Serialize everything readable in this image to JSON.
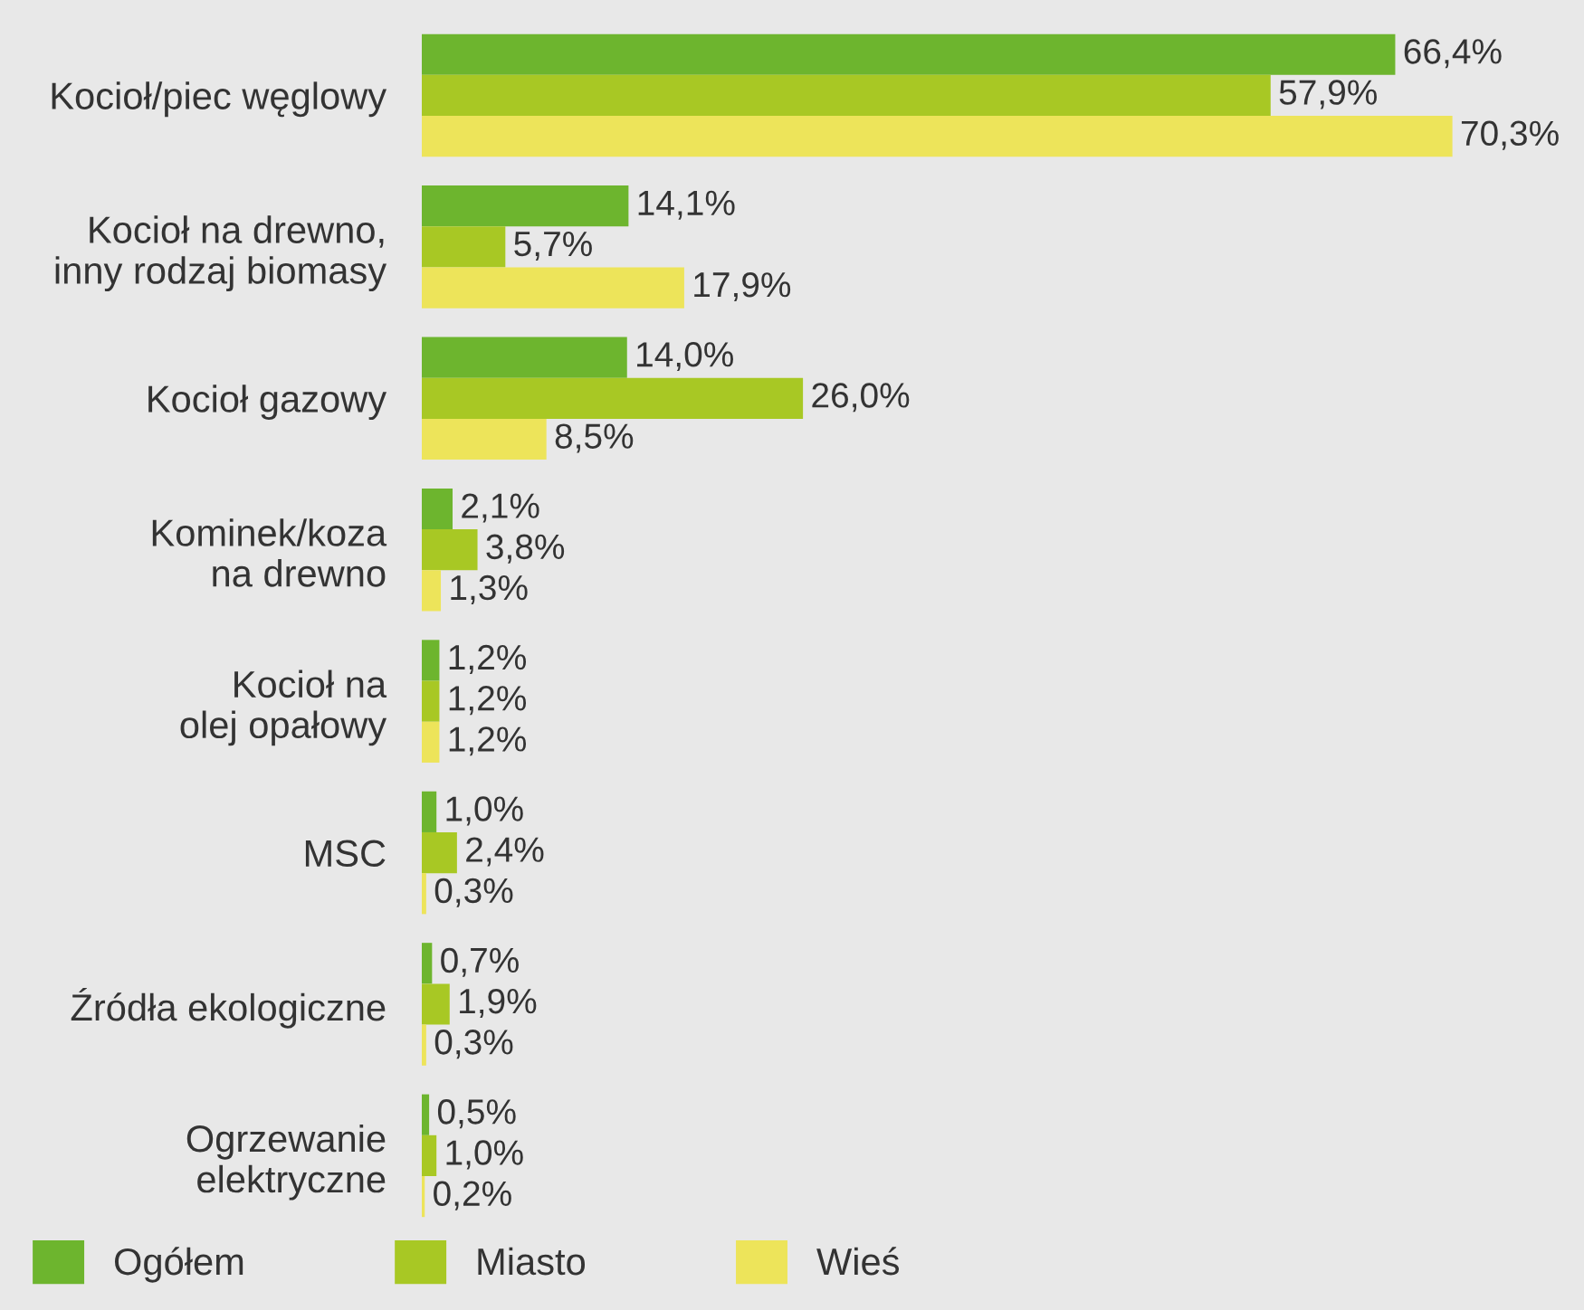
{
  "chart_data": {
    "type": "bar",
    "orientation": "horizontal",
    "categories": [
      "Kocioł/piec węglowy",
      "Kocioł na drewno,\ninny rodzaj biomasy",
      "Kocioł gazowy",
      "Kominek/koza\nna drewno",
      "Kocioł na\nolej opałowy",
      "MSC",
      "Źródła ekologiczne",
      "Ogrzewanie\nelektryczne"
    ],
    "series": [
      {
        "name": "Ogółem",
        "color": "#6db52e",
        "values": [
          66.4,
          14.1,
          14.0,
          2.1,
          1.2,
          1.0,
          0.7,
          0.5
        ],
        "value_labels": [
          "66,4%",
          "14,1%",
          "14,0%",
          "2,1%",
          "1,2%",
          "1,0%",
          "0,7%",
          "0,5%"
        ]
      },
      {
        "name": "Miasto",
        "color": "#a8c824",
        "values": [
          57.9,
          5.7,
          26.0,
          3.8,
          1.2,
          2.4,
          1.9,
          1.0
        ],
        "value_labels": [
          "57,9%",
          "5,7%",
          "26,0%",
          "3,8%",
          "1,2%",
          "2,4%",
          "1,9%",
          "1,0%"
        ]
      },
      {
        "name": "Wieś",
        "color": "#ede45a",
        "values": [
          70.3,
          17.9,
          8.5,
          1.3,
          1.2,
          0.3,
          0.3,
          0.2
        ],
        "value_labels": [
          "70,3%",
          "17,9%",
          "8,5%",
          "1,3%",
          "1,2%",
          "0,3%",
          "0,3%",
          "0,2%"
        ]
      }
    ],
    "legend": "bottom left",
    "grid": false
  }
}
